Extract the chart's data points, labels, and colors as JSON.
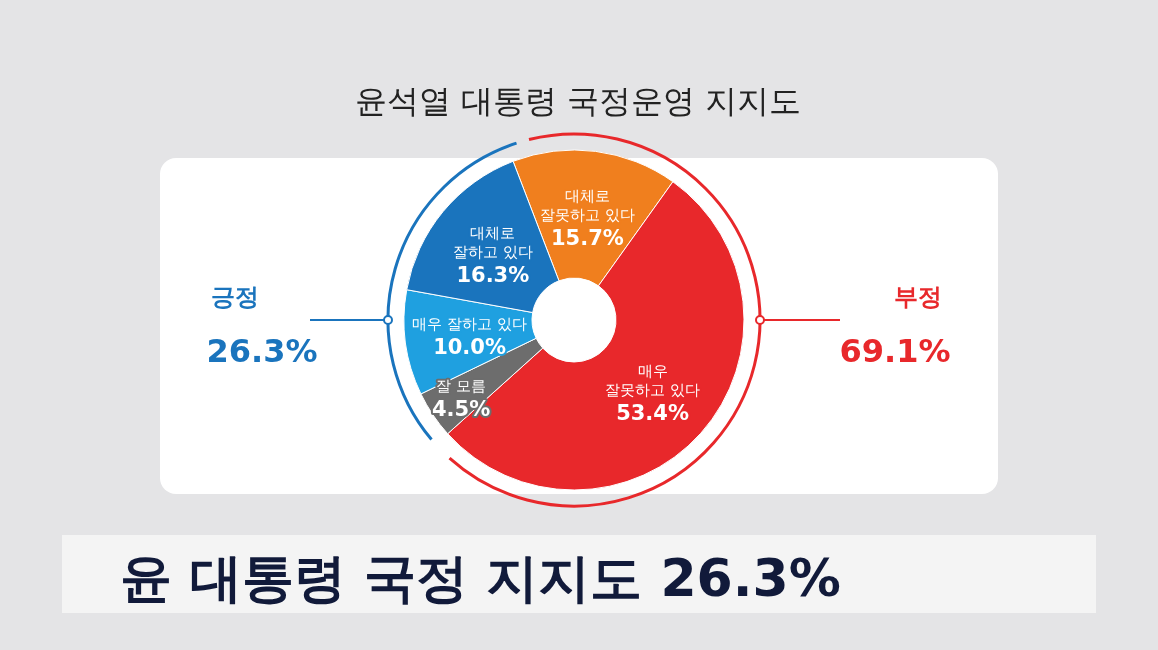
{
  "chart_data": {
    "type": "donut",
    "title": "윤석열 대통령 국정운영 지지도",
    "categories": [
      "대체로\n잘못하고 있다",
      "매우\n잘못하고 있다",
      "잘 모름",
      "매우 잘하고 있다",
      "대체로\n잘하고 있다"
    ],
    "values": [
      15.7,
      53.4,
      4.5,
      10.0,
      16.3
    ],
    "value_labels": [
      "15.7%",
      "53.4%",
      "4.5%",
      "10.0%",
      "16.3%"
    ],
    "colors": [
      "#f07f1e",
      "#e8282b",
      "#6d6d6d",
      "#1fa0e0",
      "#1a74bd"
    ],
    "annotations": [
      "긍정",
      "26.3%",
      "부정",
      "69.1%",
      "윤 대통령 국정 지지도 26.3%"
    ]
  }
}
